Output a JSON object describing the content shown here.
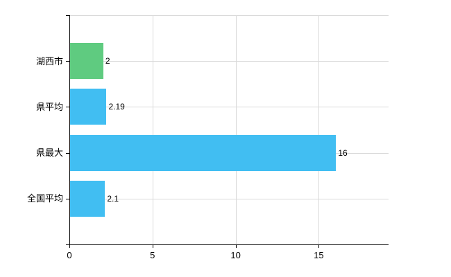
{
  "chart_data": {
    "type": "bar",
    "orientation": "horizontal",
    "title": "",
    "xlabel": "",
    "ylabel": "",
    "categories": [
      "湖西市",
      "県平均",
      "県最大",
      "全国平均"
    ],
    "values": [
      2,
      2.19,
      16,
      2.1
    ],
    "value_labels": [
      "2",
      "2.19",
      "16",
      "2.1"
    ],
    "bar_colors": [
      "#5fcb80",
      "#41bef2",
      "#41bef2",
      "#41bef2"
    ],
    "xlim": [
      0,
      19.2
    ],
    "x_ticks": [
      0,
      5,
      10,
      15
    ],
    "grid": true,
    "legend": "none",
    "colors": {
      "background": "#ffffff",
      "axis": "#000000",
      "gridline": "#d9d9d9",
      "text": "#000000"
    }
  }
}
